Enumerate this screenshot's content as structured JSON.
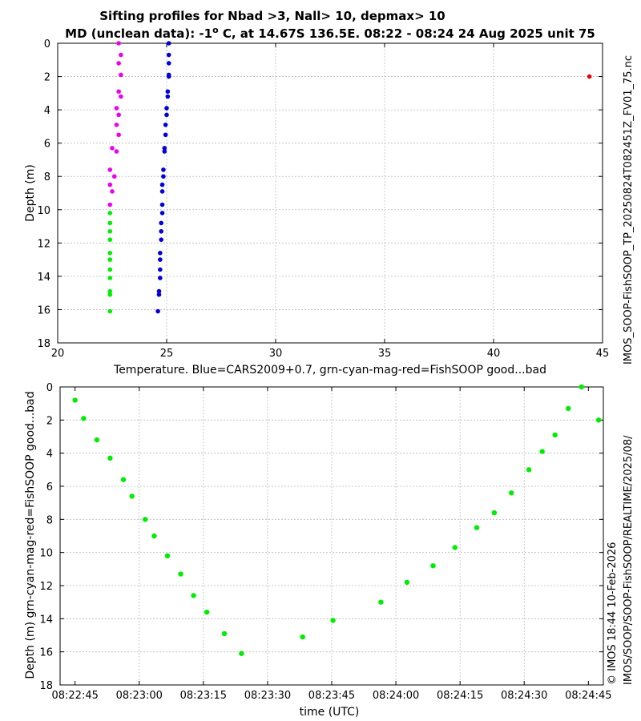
{
  "title_line1": "Sifting profiles for Nbad >3, Nall> 10, depmax> 10",
  "title_line2_pre": "MD (unclean data): -1",
  "title_line2_deg": "o",
  "title_line2_post": " C, at 14.67S 136.5E. 08:22 - 08:24 24 Aug 2025 unit 75",
  "side_label_file": "IMOS_SOOP-FishSOOP_TP_20250824T082451Z_FV01_75.nc",
  "side_label_path": "IMOS/SOOP/SOOP-FishSOOP/REALTIME/2025/08/",
  "side_label_credit": "© IMOS 18:44 10-Feb-2026",
  "colors": {
    "blue": "#0000dd",
    "green": "#00ee00",
    "magenta": "#ee00ee",
    "red": "#ee0000",
    "grid": "#bbbbbb"
  },
  "chart_data": [
    {
      "type": "scatter",
      "title": "Sifting profiles for Nbad >3, Nall> 10, depmax> 10",
      "xlabel": "Temperature. Blue=CARS2009+0.7, grn-cyan-mag-red=FishSOOP good...bad",
      "ylabel": "Depth (m)",
      "xlim": [
        20,
        45
      ],
      "ylim": [
        18,
        0
      ],
      "xticks": [
        20,
        25,
        30,
        35,
        40,
        45
      ],
      "yticks": [
        0,
        2,
        4,
        6,
        8,
        10,
        12,
        14,
        16,
        18
      ],
      "grid": true,
      "series": [
        {
          "name": "CARS2009+0.7",
          "color": "blue",
          "points": [
            [
              25.1,
              0.0
            ],
            [
              25.1,
              0.7
            ],
            [
              25.1,
              1.2
            ],
            [
              25.1,
              1.9
            ],
            [
              25.1,
              2.0
            ],
            [
              25.05,
              2.9
            ],
            [
              25.05,
              3.2
            ],
            [
              25.0,
              3.9
            ],
            [
              25.0,
              4.3
            ],
            [
              24.95,
              4.9
            ],
            [
              24.95,
              5.5
            ],
            [
              24.9,
              6.3
            ],
            [
              24.9,
              6.5
            ],
            [
              24.85,
              7.6
            ],
            [
              24.85,
              8.0
            ],
            [
              24.8,
              8.5
            ],
            [
              24.8,
              8.9
            ],
            [
              24.8,
              9.7
            ],
            [
              24.8,
              10.2
            ],
            [
              24.75,
              10.8
            ],
            [
              24.75,
              11.3
            ],
            [
              24.75,
              11.8
            ],
            [
              24.7,
              12.6
            ],
            [
              24.7,
              13.0
            ],
            [
              24.7,
              13.6
            ],
            [
              24.7,
              14.1
            ],
            [
              24.65,
              14.9
            ],
            [
              24.65,
              15.1
            ],
            [
              24.6,
              16.1
            ]
          ]
        },
        {
          "name": "FishSOOP bad (magenta)",
          "color": "magenta",
          "points": [
            [
              22.8,
              0.0
            ],
            [
              22.9,
              0.7
            ],
            [
              22.8,
              1.2
            ],
            [
              22.9,
              1.9
            ],
            [
              22.8,
              2.9
            ],
            [
              22.9,
              3.2
            ],
            [
              22.7,
              3.9
            ],
            [
              22.8,
              4.3
            ],
            [
              22.7,
              4.9
            ],
            [
              22.8,
              5.5
            ],
            [
              22.5,
              6.3
            ],
            [
              22.7,
              6.5
            ],
            [
              22.4,
              7.6
            ],
            [
              22.6,
              8.0
            ],
            [
              22.4,
              8.5
            ],
            [
              22.5,
              8.9
            ],
            [
              22.4,
              9.7
            ]
          ]
        },
        {
          "name": "FishSOOP good (green)",
          "color": "green",
          "points": [
            [
              22.4,
              10.2
            ],
            [
              22.4,
              10.8
            ],
            [
              22.4,
              11.3
            ],
            [
              22.4,
              11.8
            ],
            [
              22.4,
              12.6
            ],
            [
              22.4,
              13.0
            ],
            [
              22.4,
              13.6
            ],
            [
              22.4,
              14.1
            ],
            [
              22.4,
              14.9
            ],
            [
              22.4,
              15.1
            ],
            [
              22.4,
              16.1
            ]
          ]
        },
        {
          "name": "FishSOOP bad (red)",
          "color": "red",
          "points": [
            [
              44.4,
              2.0
            ]
          ]
        }
      ]
    },
    {
      "type": "scatter",
      "title": "",
      "xlabel": "time (UTC)",
      "ylabel": "Depth (m) grn-cyan-mag-red=FishSOOP good...bad",
      "xlim_seconds": [
        0,
        120
      ],
      "xtick_labels": [
        "08:22:45",
        "08:23:00",
        "08:23:15",
        "08:23:30",
        "08:23:45",
        "08:24:00",
        "08:24:15",
        "08:24:30",
        "08:24:45"
      ],
      "xtick_seconds": [
        0,
        15,
        30,
        45,
        60,
        75,
        90,
        105,
        120
      ],
      "ylim": [
        18,
        0
      ],
      "yticks": [
        0,
        2,
        4,
        6,
        8,
        10,
        12,
        14,
        16,
        18
      ],
      "grid": true,
      "series": [
        {
          "name": "FishSOOP depth vs time",
          "color": "green",
          "points": [
            [
              0.0,
              0.8
            ],
            [
              2.0,
              1.9
            ],
            [
              5.1,
              3.2
            ],
            [
              8.2,
              4.3
            ],
            [
              11.3,
              5.6
            ],
            [
              13.3,
              6.6
            ],
            [
              16.4,
              8.0
            ],
            [
              18.5,
              9.0
            ],
            [
              21.6,
              10.2
            ],
            [
              24.7,
              11.3
            ],
            [
              27.7,
              12.6
            ],
            [
              30.8,
              13.6
            ],
            [
              34.9,
              14.9
            ],
            [
              38.9,
              16.1
            ],
            [
              53.2,
              15.1
            ],
            [
              60.3,
              14.1
            ],
            [
              71.5,
              13.0
            ],
            [
              77.6,
              11.8
            ],
            [
              83.7,
              10.8
            ],
            [
              88.8,
              9.7
            ],
            [
              93.9,
              8.5
            ],
            [
              98.0,
              7.6
            ],
            [
              102.0,
              6.4
            ],
            [
              106.1,
              5.0
            ],
            [
              109.2,
              3.9
            ],
            [
              112.2,
              2.9
            ],
            [
              115.3,
              1.3
            ],
            [
              118.4,
              0.0
            ],
            [
              122.4,
              2.0
            ]
          ]
        }
      ]
    }
  ]
}
